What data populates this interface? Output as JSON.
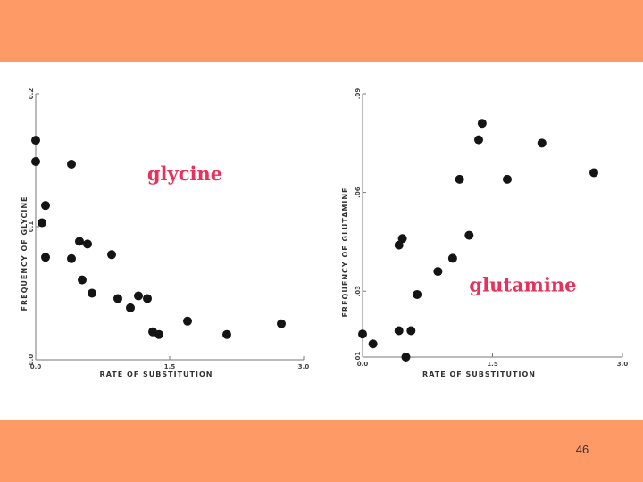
{
  "colors": {
    "band": "#fe9a66",
    "label": "#e8305a",
    "ink": "#141414"
  },
  "page_number": "46",
  "chart_data": [
    {
      "type": "scatter",
      "title": "",
      "label": "glycine",
      "xlabel": "RATE OF SUBSTITUTION",
      "ylabel": "FREQUENCY OF GLYCINE",
      "xlim": [
        0,
        3
      ],
      "ylim": [
        0,
        0.2
      ],
      "xticks": [
        {
          "v": 0,
          "label": "0.0"
        },
        {
          "v": 1.5,
          "label": "1.5"
        },
        {
          "v": 3,
          "label": "3.0"
        }
      ],
      "yticks": [
        {
          "v": 0,
          "label": "0.0"
        },
        {
          "v": 0.1,
          "label": "0.1"
        },
        {
          "v": 0.2,
          "label": "0.2"
        }
      ],
      "label_pos": [
        1.67,
        0.135
      ],
      "points": [
        [
          0.0,
          0.165
        ],
        [
          0.0,
          0.149
        ],
        [
          0.07,
          0.103
        ],
        [
          0.11,
          0.116
        ],
        [
          0.11,
          0.077
        ],
        [
          0.4,
          0.147
        ],
        [
          0.4,
          0.076
        ],
        [
          0.49,
          0.089
        ],
        [
          0.52,
          0.06
        ],
        [
          0.58,
          0.087
        ],
        [
          0.63,
          0.05
        ],
        [
          0.85,
          0.079
        ],
        [
          0.92,
          0.046
        ],
        [
          1.06,
          0.039
        ],
        [
          1.15,
          0.048
        ],
        [
          1.25,
          0.046
        ],
        [
          1.31,
          0.021
        ],
        [
          1.38,
          0.019
        ],
        [
          1.7,
          0.029
        ],
        [
          2.14,
          0.019
        ],
        [
          2.75,
          0.027
        ]
      ]
    },
    {
      "type": "scatter",
      "title": "",
      "label": "glutamine",
      "xlabel": "RATE OF SUBSTITUTION",
      "ylabel": "FREQUENCY OF GLUTAMINE",
      "xlim": [
        0,
        3
      ],
      "ylim": [
        0.01,
        0.09
      ],
      "xticks": [
        {
          "v": 0,
          "label": "0.0"
        },
        {
          "v": 1.5,
          "label": "1.5"
        },
        {
          "v": 3,
          "label": "3.0"
        }
      ],
      "yticks": [
        {
          "v": 0.01,
          "label": ".01"
        },
        {
          "v": 0.03,
          "label": ".03"
        },
        {
          "v": 0.06,
          "label": ".06"
        },
        {
          "v": 0.09,
          "label": ".09"
        }
      ],
      "label_pos": [
        1.85,
        0.03
      ],
      "points": [
        [
          0.0,
          0.017
        ],
        [
          0.12,
          0.014
        ],
        [
          0.42,
          0.018
        ],
        [
          0.42,
          0.044
        ],
        [
          0.46,
          0.046
        ],
        [
          0.5,
          0.01
        ],
        [
          0.56,
          0.018
        ],
        [
          0.63,
          0.029
        ],
        [
          0.87,
          0.036
        ],
        [
          1.04,
          0.04
        ],
        [
          1.12,
          0.064
        ],
        [
          1.23,
          0.047
        ],
        [
          1.34,
          0.076
        ],
        [
          1.38,
          0.081
        ],
        [
          1.67,
          0.064
        ],
        [
          2.07,
          0.075
        ],
        [
          2.67,
          0.066
        ]
      ]
    }
  ]
}
